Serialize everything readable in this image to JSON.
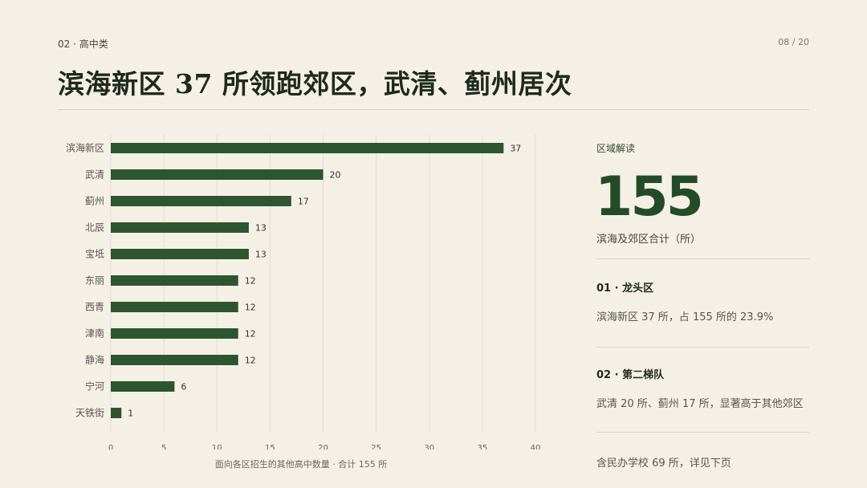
{
  "header": {
    "section": "02 · 高中类",
    "page": "08 / 20",
    "title": "滨海新区 37 所领跑郊区，武清、蓟州居次"
  },
  "caption": "面向各区招生的其他高中数量 · 合计 155 所",
  "panel": {
    "heading": "区域解读",
    "big_number": "155",
    "big_number_label": "滨海及郊区合计（所）",
    "points": [
      {
        "title": "01 · 龙头区",
        "body": "滨海新区 37 所，占 155 所的 23.9%"
      },
      {
        "title": "02 · 第二梯队",
        "body": "武清 20 所、蓟州 17 所，显著高于其他郊区"
      }
    ],
    "footnote": "含民办学校 69 所，详见下页"
  },
  "colors": {
    "bar": "#2c5530",
    "background": "#f5f0e6",
    "accent": "#244b28"
  },
  "chart_data": {
    "type": "bar",
    "orientation": "horizontal",
    "categories": [
      "滨海新区",
      "武清",
      "蓟州",
      "北辰",
      "宝坻",
      "东丽",
      "西青",
      "津南",
      "静海",
      "宁河",
      "天铁街"
    ],
    "values": [
      37,
      20,
      17,
      13,
      13,
      12,
      12,
      12,
      12,
      6,
      1
    ],
    "xlim": [
      0,
      40
    ],
    "xticks": [
      0,
      5,
      10,
      15,
      20,
      25,
      30,
      35,
      40
    ],
    "grid": true,
    "data_labels": true
  }
}
